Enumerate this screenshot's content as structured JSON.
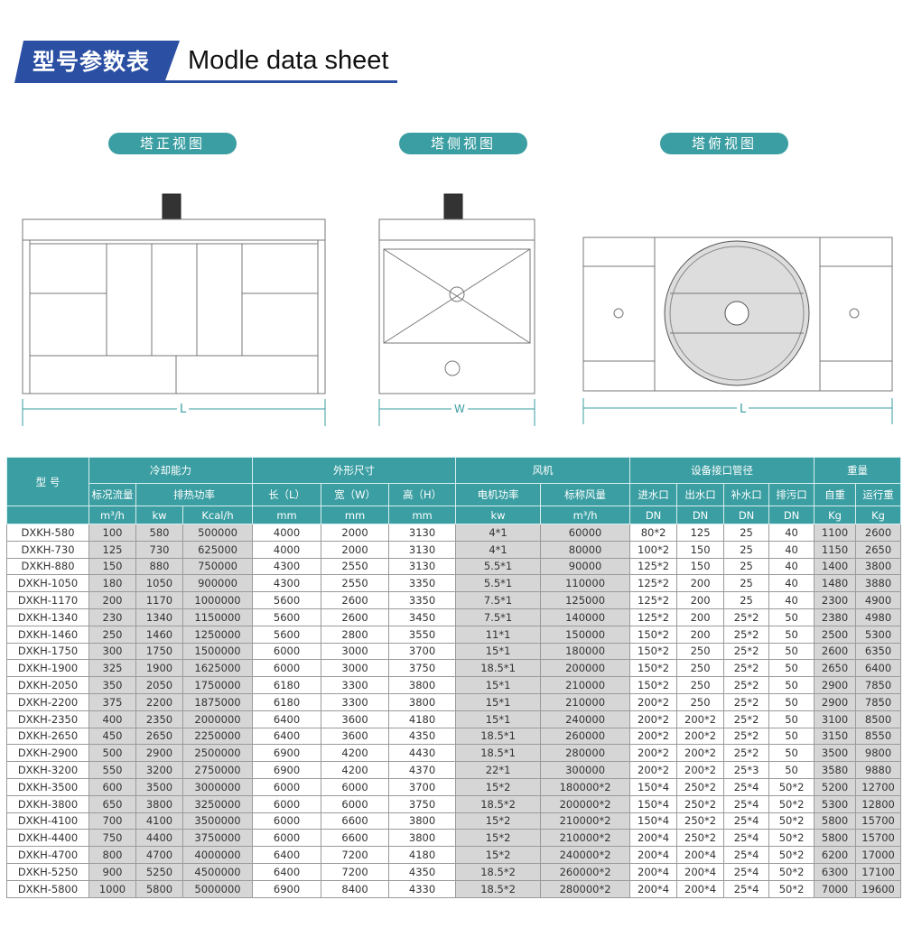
{
  "header": {
    "title_cn": "型号参数表",
    "title_en": "Modle data sheet"
  },
  "views": {
    "front": "塔正视图",
    "side": "塔侧视图",
    "top": "塔俯视图",
    "front_dim": "L",
    "side_dim": "W",
    "top_dim": "L"
  },
  "colors": {
    "accent": "#3a9ea2",
    "title_blue": "#2b4fa3",
    "shaded_cell": "#d6d6d6"
  },
  "table": {
    "headers": {
      "model": "型 号",
      "cooling": "冷却能力",
      "dims": "外形尺寸",
      "fan": "风机",
      "pipes": "设备接口管径",
      "weight": "重量",
      "flow": "标况流量",
      "heat": "排热功率",
      "length": "长（L）",
      "width": "宽（W）",
      "height": "高（H）",
      "motor": "电机功率",
      "airflow": "标称风量",
      "inlet": "进水口",
      "outlet": "出水口",
      "makeup": "补水口",
      "drain": "排污口",
      "self_weight": "自重",
      "op_weight": "运行重"
    },
    "units": [
      "m³/h",
      "kw",
      "Kcal/h",
      "mm",
      "mm",
      "mm",
      "kw",
      "m³/h",
      "DN",
      "DN",
      "DN",
      "DN",
      "Kg",
      "Kg"
    ],
    "rows": [
      [
        "DXKH-580",
        "100",
        "580",
        "500000",
        "4000",
        "2000",
        "3130",
        "4*1",
        "60000",
        "80*2",
        "125",
        "25",
        "40",
        "1100",
        "2600"
      ],
      [
        "DXKH-730",
        "125",
        "730",
        "625000",
        "4000",
        "2000",
        "3130",
        "4*1",
        "80000",
        "100*2",
        "150",
        "25",
        "40",
        "1150",
        "2650"
      ],
      [
        "DXKH-880",
        "150",
        "880",
        "750000",
        "4300",
        "2550",
        "3130",
        "5.5*1",
        "90000",
        "125*2",
        "150",
        "25",
        "40",
        "1400",
        "3800"
      ],
      [
        "DXKH-1050",
        "180",
        "1050",
        "900000",
        "4300",
        "2550",
        "3350",
        "5.5*1",
        "110000",
        "125*2",
        "200",
        "25",
        "40",
        "1480",
        "3880"
      ],
      [
        "DXKH-1170",
        "200",
        "1170",
        "1000000",
        "5600",
        "2600",
        "3350",
        "7.5*1",
        "125000",
        "125*2",
        "200",
        "25",
        "40",
        "2300",
        "4900"
      ],
      [
        "DXKH-1340",
        "230",
        "1340",
        "1150000",
        "5600",
        "2600",
        "3450",
        "7.5*1",
        "140000",
        "125*2",
        "200",
        "25*2",
        "50",
        "2380",
        "4980"
      ],
      [
        "DXKH-1460",
        "250",
        "1460",
        "1250000",
        "5600",
        "2800",
        "3550",
        "11*1",
        "150000",
        "150*2",
        "200",
        "25*2",
        "50",
        "2500",
        "5300"
      ],
      [
        "DXKH-1750",
        "300",
        "1750",
        "1500000",
        "6000",
        "3000",
        "3700",
        "15*1",
        "180000",
        "150*2",
        "250",
        "25*2",
        "50",
        "2600",
        "6350"
      ],
      [
        "DXKH-1900",
        "325",
        "1900",
        "1625000",
        "6000",
        "3000",
        "3750",
        "18.5*1",
        "200000",
        "150*2",
        "250",
        "25*2",
        "50",
        "2650",
        "6400"
      ],
      [
        "DXKH-2050",
        "350",
        "2050",
        "1750000",
        "6180",
        "3300",
        "3800",
        "15*1",
        "210000",
        "150*2",
        "250",
        "25*2",
        "50",
        "2900",
        "7850"
      ],
      [
        "DXKH-2200",
        "375",
        "2200",
        "1875000",
        "6180",
        "3300",
        "3800",
        "15*1",
        "210000",
        "200*2",
        "250",
        "25*2",
        "50",
        "2900",
        "7850"
      ],
      [
        "DXKH-2350",
        "400",
        "2350",
        "2000000",
        "6400",
        "3600",
        "4180",
        "15*1",
        "240000",
        "200*2",
        "200*2",
        "25*2",
        "50",
        "3100",
        "8500"
      ],
      [
        "DXKH-2650",
        "450",
        "2650",
        "2250000",
        "6400",
        "3600",
        "4350",
        "18.5*1",
        "260000",
        "200*2",
        "200*2",
        "25*2",
        "50",
        "3150",
        "8550"
      ],
      [
        "DXKH-2900",
        "500",
        "2900",
        "2500000",
        "6900",
        "4200",
        "4430",
        "18.5*1",
        "280000",
        "200*2",
        "200*2",
        "25*2",
        "50",
        "3500",
        "9800"
      ],
      [
        "DXKH-3200",
        "550",
        "3200",
        "2750000",
        "6900",
        "4200",
        "4370",
        "22*1",
        "300000",
        "200*2",
        "200*2",
        "25*3",
        "50",
        "3580",
        "9880"
      ],
      [
        "DXKH-3500",
        "600",
        "3500",
        "3000000",
        "6000",
        "6000",
        "3700",
        "15*2",
        "180000*2",
        "150*4",
        "250*2",
        "25*4",
        "50*2",
        "5200",
        "12700"
      ],
      [
        "DXKH-3800",
        "650",
        "3800",
        "3250000",
        "6000",
        "6000",
        "3750",
        "18.5*2",
        "200000*2",
        "150*4",
        "250*2",
        "25*4",
        "50*2",
        "5300",
        "12800"
      ],
      [
        "DXKH-4100",
        "700",
        "4100",
        "3500000",
        "6000",
        "6600",
        "3800",
        "15*2",
        "210000*2",
        "150*4",
        "250*2",
        "25*4",
        "50*2",
        "5800",
        "15700"
      ],
      [
        "DXKH-4400",
        "750",
        "4400",
        "3750000",
        "6000",
        "6600",
        "3800",
        "15*2",
        "210000*2",
        "200*4",
        "250*2",
        "25*4",
        "50*2",
        "5800",
        "15700"
      ],
      [
        "DXKH-4700",
        "800",
        "4700",
        "4000000",
        "6400",
        "7200",
        "4180",
        "15*2",
        "240000*2",
        "200*4",
        "200*4",
        "25*4",
        "50*2",
        "6200",
        "17000"
      ],
      [
        "DXKH-5250",
        "900",
        "5250",
        "4500000",
        "6400",
        "7200",
        "4350",
        "18.5*2",
        "260000*2",
        "200*4",
        "200*4",
        "25*4",
        "50*2",
        "6300",
        "17100"
      ],
      [
        "DXKH-5800",
        "1000",
        "5800",
        "5000000",
        "6900",
        "8400",
        "4330",
        "18.5*2",
        "280000*2",
        "200*4",
        "200*4",
        "25*4",
        "50*2",
        "7000",
        "19600"
      ]
    ]
  }
}
